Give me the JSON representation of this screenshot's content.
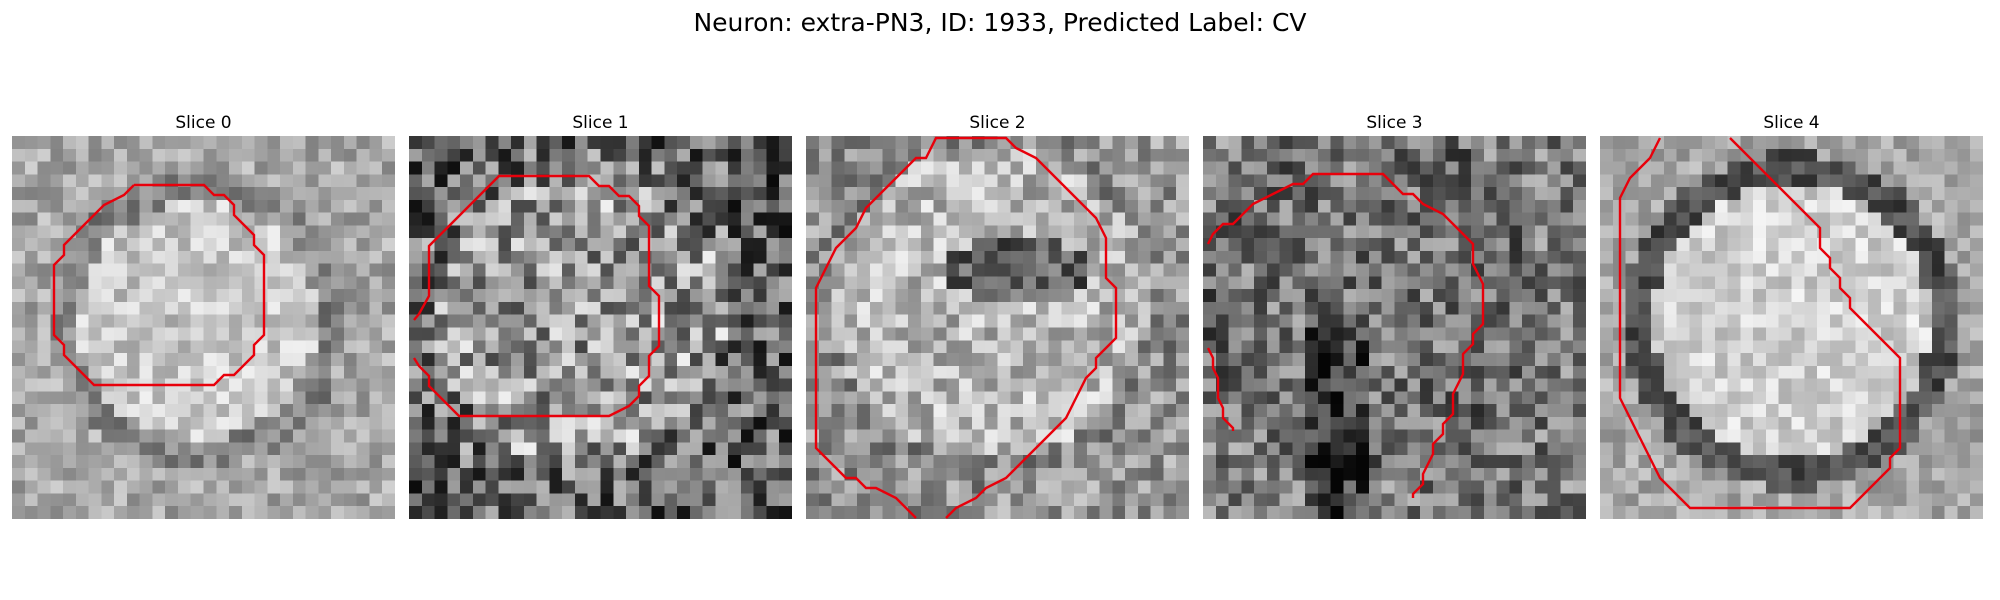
{
  "figure": {
    "title": "Neuron: extra-PN3, ID: 1933, Predicted Label: CV",
    "contour_color": "#e8000b",
    "panels": [
      {
        "label": "Slice 0"
      },
      {
        "label": "Slice 1"
      },
      {
        "label": "Slice 2"
      },
      {
        "label": "Slice 3"
      },
      {
        "label": "Slice 4"
      }
    ]
  }
}
